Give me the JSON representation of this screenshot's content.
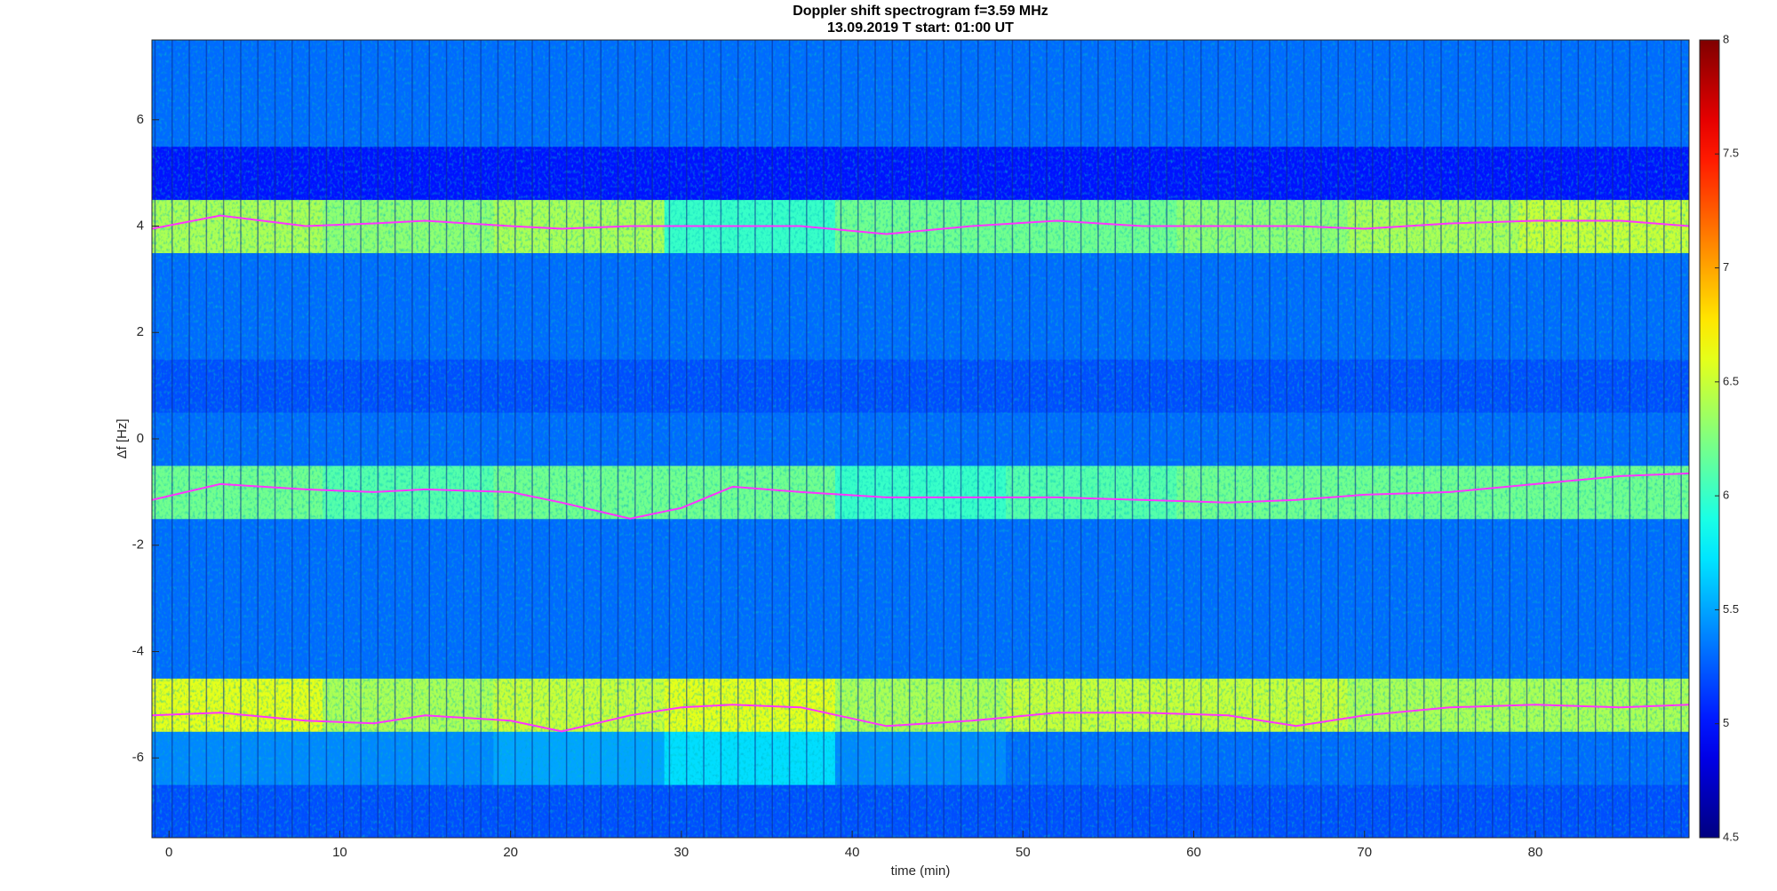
{
  "chart_data": {
    "type": "spectrogram",
    "title": "Doppler shift spectrogram f=3.59 MHz",
    "subtitle": "13.09.2019   T start: 01:00 UT",
    "xlabel": "time (min)",
    "ylabel": "Δf [Hz]",
    "xlim": [
      -1,
      89
    ],
    "xticks": [
      0,
      10,
      20,
      30,
      40,
      50,
      60,
      70,
      80
    ],
    "ylim": [
      -7.5,
      7.5
    ],
    "yticks": [
      -6,
      -4,
      -2,
      0,
      2,
      4,
      6
    ],
    "clim": [
      4.5,
      8
    ],
    "cticks": [
      4.5,
      5,
      5.5,
      6,
      6.5,
      7,
      7.5,
      8
    ],
    "colormap": "jet",
    "xbins": [
      -1,
      9,
      19,
      29,
      39,
      49,
      59,
      69,
      79,
      89
    ],
    "ybins": [
      -7.5,
      -6.5,
      -5.5,
      -4.5,
      -3.5,
      -2.5,
      -1.5,
      -0.5,
      0.5,
      1.5,
      2.5,
      3.5,
      4.5,
      5.5,
      6.5,
      7.5
    ],
    "z": [
      [
        5.2,
        5.2,
        5.2,
        5.2,
        5.2,
        5.2,
        5.2,
        5.2,
        5.2
      ],
      [
        5.4,
        5.4,
        5.5,
        5.7,
        5.4,
        5.3,
        5.3,
        5.3,
        5.3
      ],
      [
        6.6,
        6.4,
        6.5,
        6.6,
        6.4,
        6.5,
        6.5,
        6.4,
        6.4
      ],
      [
        5.3,
        5.3,
        5.3,
        5.3,
        5.3,
        5.3,
        5.3,
        5.3,
        5.3
      ],
      [
        5.3,
        5.3,
        5.3,
        5.3,
        5.3,
        5.3,
        5.3,
        5.3,
        5.3
      ],
      [
        5.3,
        5.3,
        5.3,
        5.3,
        5.3,
        5.3,
        5.3,
        5.3,
        5.3
      ],
      [
        6.2,
        6.1,
        6.2,
        6.2,
        6.0,
        6.1,
        6.2,
        6.2,
        6.2
      ],
      [
        5.3,
        5.3,
        5.3,
        5.3,
        5.3,
        5.3,
        5.3,
        5.3,
        5.3
      ],
      [
        5.2,
        5.2,
        5.2,
        5.2,
        5.2,
        5.2,
        5.2,
        5.2,
        5.2
      ],
      [
        5.3,
        5.3,
        5.3,
        5.3,
        5.3,
        5.3,
        5.3,
        5.3,
        5.3
      ],
      [
        5.3,
        5.3,
        5.3,
        5.3,
        5.3,
        5.3,
        5.3,
        5.3,
        5.3
      ],
      [
        6.4,
        6.3,
        6.4,
        6.0,
        6.2,
        6.2,
        6.3,
        6.4,
        6.5
      ],
      [
        5.0,
        5.0,
        5.0,
        5.0,
        5.0,
        5.0,
        5.0,
        5.0,
        5.0
      ],
      [
        5.3,
        5.3,
        5.3,
        5.3,
        5.3,
        5.3,
        5.3,
        5.3,
        5.3
      ],
      [
        5.3,
        5.3,
        5.3,
        5.3,
        5.3,
        5.3,
        5.3,
        5.3,
        5.3
      ]
    ],
    "x": [
      -1,
      3,
      8,
      12,
      15,
      20,
      23,
      27,
      30,
      33,
      37,
      42,
      47,
      52,
      57,
      62,
      66,
      70,
      75,
      80,
      85,
      89
    ],
    "series": [
      {
        "color": "#ff33ff",
        "values": [
          3.95,
          4.2,
          4.0,
          4.05,
          4.1,
          4.0,
          3.95,
          4.0,
          4.0,
          4.0,
          4.0,
          3.85,
          4.0,
          4.1,
          4.0,
          4.0,
          4.0,
          3.95,
          4.05,
          4.1,
          4.1,
          4.0
        ]
      },
      {
        "color": "#ff33ff",
        "values": [
          -1.15,
          -0.85,
          -0.95,
          -1.0,
          -0.95,
          -1.0,
          -1.2,
          -1.5,
          -1.3,
          -0.9,
          -1.0,
          -1.1,
          -1.1,
          -1.1,
          -1.15,
          -1.2,
          -1.15,
          -1.05,
          -1.0,
          -0.85,
          -0.7,
          -0.65
        ]
      },
      {
        "color": "#ff33ff",
        "values": [
          -5.2,
          -5.15,
          -5.3,
          -5.35,
          -5.2,
          -5.3,
          -5.5,
          -5.2,
          -5.05,
          -5.0,
          -5.05,
          -5.4,
          -5.3,
          -5.15,
          -5.15,
          -5.2,
          -5.4,
          -5.2,
          -5.05,
          -5.0,
          -5.05,
          -5.0
        ]
      }
    ]
  }
}
